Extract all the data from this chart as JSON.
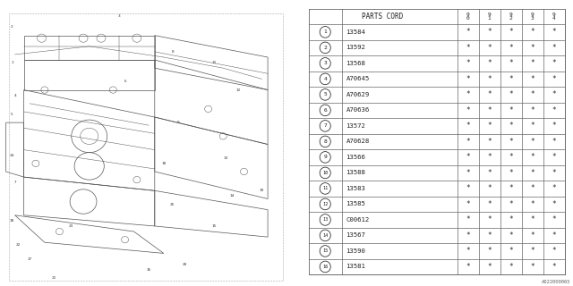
{
  "title": "PARTS CORD",
  "year_cols": [
    "9\n0",
    "9\n1",
    "9\n2",
    "9\n3",
    "9\n4"
  ],
  "parts": [
    {
      "num": 1,
      "code": "13584"
    },
    {
      "num": 2,
      "code": "13592"
    },
    {
      "num": 3,
      "code": "13568"
    },
    {
      "num": 4,
      "code": "A70645"
    },
    {
      "num": 5,
      "code": "A70629"
    },
    {
      "num": 6,
      "code": "A70636"
    },
    {
      "num": 7,
      "code": "13572"
    },
    {
      "num": 8,
      "code": "A70628"
    },
    {
      "num": 9,
      "code": "13566"
    },
    {
      "num": 10,
      "code": "13588"
    },
    {
      "num": 11,
      "code": "13583"
    },
    {
      "num": 12,
      "code": "13585"
    },
    {
      "num": 13,
      "code": "C00612"
    },
    {
      "num": 14,
      "code": "13567"
    },
    {
      "num": 15,
      "code": "13590"
    },
    {
      "num": 16,
      "code": "13581"
    }
  ],
  "bg_color": "#ffffff",
  "table_line_color": "#666666",
  "text_color": "#222222",
  "footer_code": "A022000065",
  "diagram_line_color": "#555555"
}
